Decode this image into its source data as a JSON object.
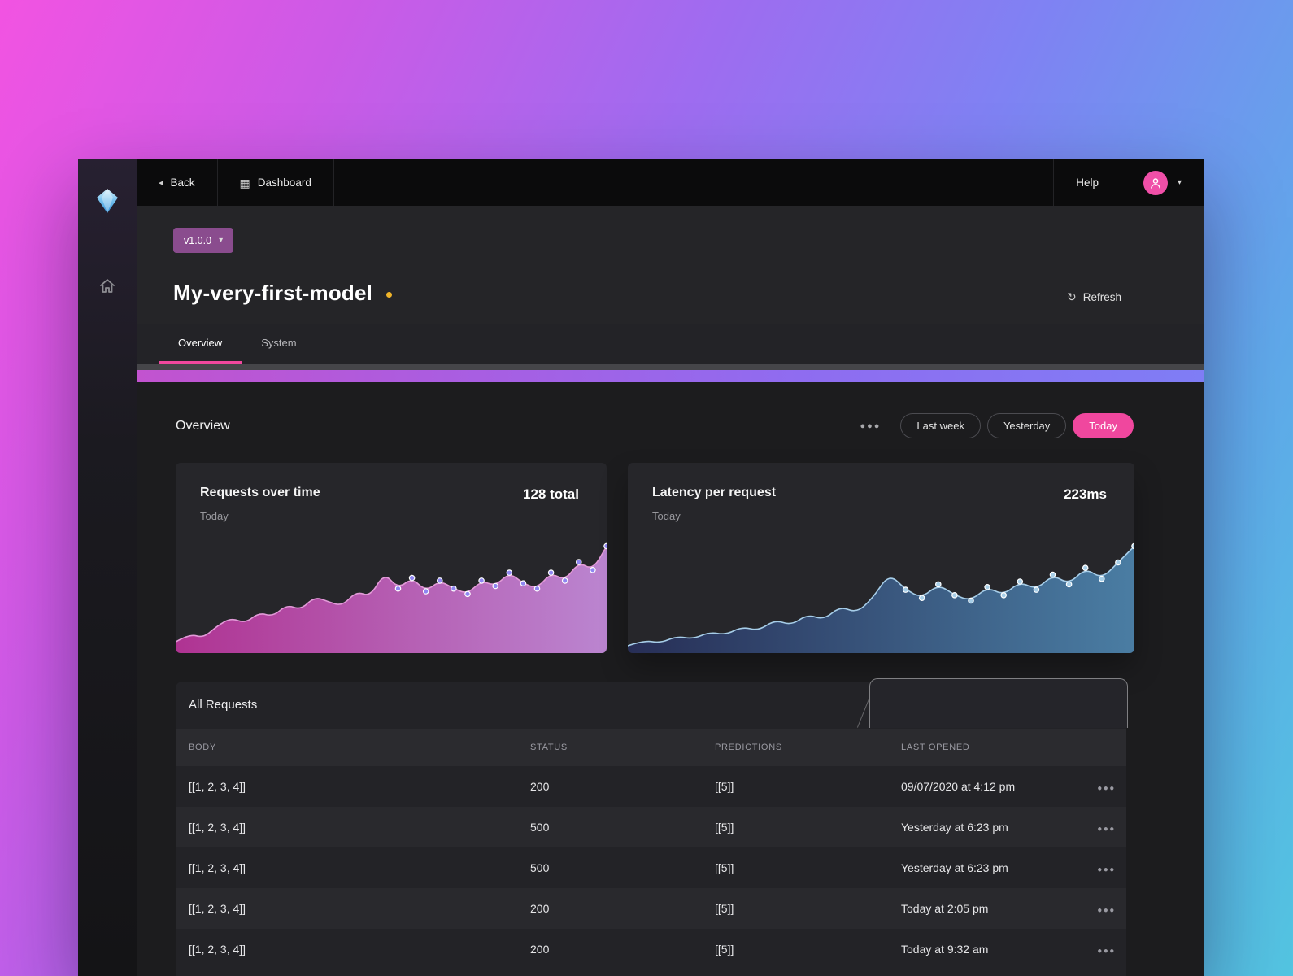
{
  "colors": {
    "accent_pink": "#f0479e",
    "badge_purple": "#8a4c8e",
    "status_yellow": "#f0b429"
  },
  "navbar": {
    "back": "Back",
    "dashboard": "Dashboard",
    "help": "Help"
  },
  "model": {
    "version": "v1.0.0",
    "title": "My-very-first-model",
    "refresh": "Refresh"
  },
  "tabs": [
    {
      "label": "Overview",
      "active": true
    },
    {
      "label": "System",
      "active": false
    }
  ],
  "content": {
    "heading": "Overview",
    "filters": [
      {
        "label": "Last week",
        "active": false
      },
      {
        "label": "Yesterday",
        "active": false
      },
      {
        "label": "Today",
        "active": true
      }
    ]
  },
  "chart_data": [
    {
      "type": "area",
      "title": "Requests over time",
      "subtitle": "Today",
      "value_label": "128 total",
      "values": [
        6,
        12,
        9,
        18,
        24,
        20,
        28,
        25,
        34,
        30,
        40,
        36,
        33,
        44,
        40,
        58,
        46,
        54,
        44,
        52,
        46,
        42,
        52,
        48,
        58,
        50,
        46,
        58,
        52,
        66,
        60,
        78
      ],
      "dot_start": 16,
      "stroke": "#e29ad8",
      "dot_fill": "#8f86f2",
      "gradient": [
        "#af3392",
        "#bb85d0"
      ]
    },
    {
      "type": "area",
      "title": "Latency per request",
      "subtitle": "Today",
      "value_label": "223ms",
      "values": [
        3,
        7,
        5,
        10,
        8,
        13,
        11,
        17,
        14,
        22,
        18,
        26,
        22,
        32,
        27,
        38,
        56,
        44,
        38,
        48,
        40,
        36,
        46,
        40,
        50,
        44,
        55,
        48,
        60,
        52,
        64,
        76
      ],
      "dot_start": 17,
      "stroke": "#a6cde8",
      "dot_fill": "#a8cfe8",
      "gradient": [
        "#272e56",
        "#4a7da3"
      ]
    }
  ],
  "table": {
    "title": "All Requests",
    "columns": [
      "BODY",
      "STATUS",
      "PREDICTIONS",
      "LAST OPENED"
    ],
    "rows": [
      {
        "body": "[[1, 2, 3, 4]]",
        "status": "200",
        "predictions": "[[5]]",
        "last_opened": "09/07/2020 at 4:12 pm"
      },
      {
        "body": "[[1, 2, 3, 4]]",
        "status": "500",
        "predictions": "[[5]]",
        "last_opened": "Yesterday at 6:23 pm"
      },
      {
        "body": "[[1, 2, 3, 4]]",
        "status": "500",
        "predictions": "[[5]]",
        "last_opened": "Yesterday at 6:23 pm"
      },
      {
        "body": "[[1, 2, 3, 4]]",
        "status": "200",
        "predictions": "[[5]]",
        "last_opened": "Today at 2:05 pm"
      },
      {
        "body": "[[1, 2, 3, 4]]",
        "status": "200",
        "predictions": "[[5]]",
        "last_opened": "Today at 9:32 am"
      }
    ]
  }
}
